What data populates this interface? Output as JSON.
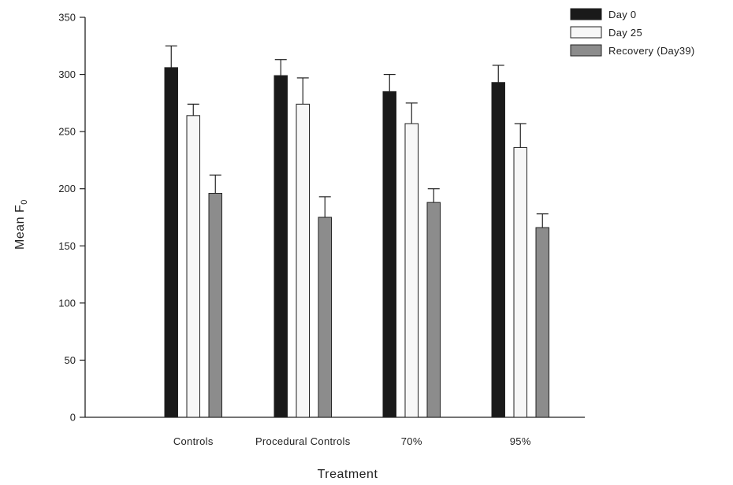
{
  "chart_data": {
    "type": "bar",
    "xlabel": "Treatment",
    "ylabel": "Mean F",
    "ylabel_subscript": "0",
    "ylim": [
      0,
      350
    ],
    "yticks": [
      0,
      50,
      100,
      150,
      200,
      250,
      300,
      350
    ],
    "categories": [
      "Controls",
      "Procedural Controls",
      "70%",
      "95%"
    ],
    "series": [
      {
        "name": "Day 0",
        "color": "#1a1a1a",
        "values": [
          306,
          299,
          285,
          293
        ],
        "errors": [
          19,
          14,
          15,
          15
        ]
      },
      {
        "name": "Day 25",
        "color": "#f7f7f7",
        "values": [
          264,
          274,
          257,
          236
        ],
        "errors": [
          10,
          23,
          18,
          21
        ]
      },
      {
        "name": "Recovery (Day39)",
        "color": "#8c8c8c",
        "values": [
          196,
          175,
          188,
          166
        ],
        "errors": [
          16,
          18,
          12,
          12
        ]
      }
    ],
    "legend_position": "top-right",
    "grid": false
  }
}
